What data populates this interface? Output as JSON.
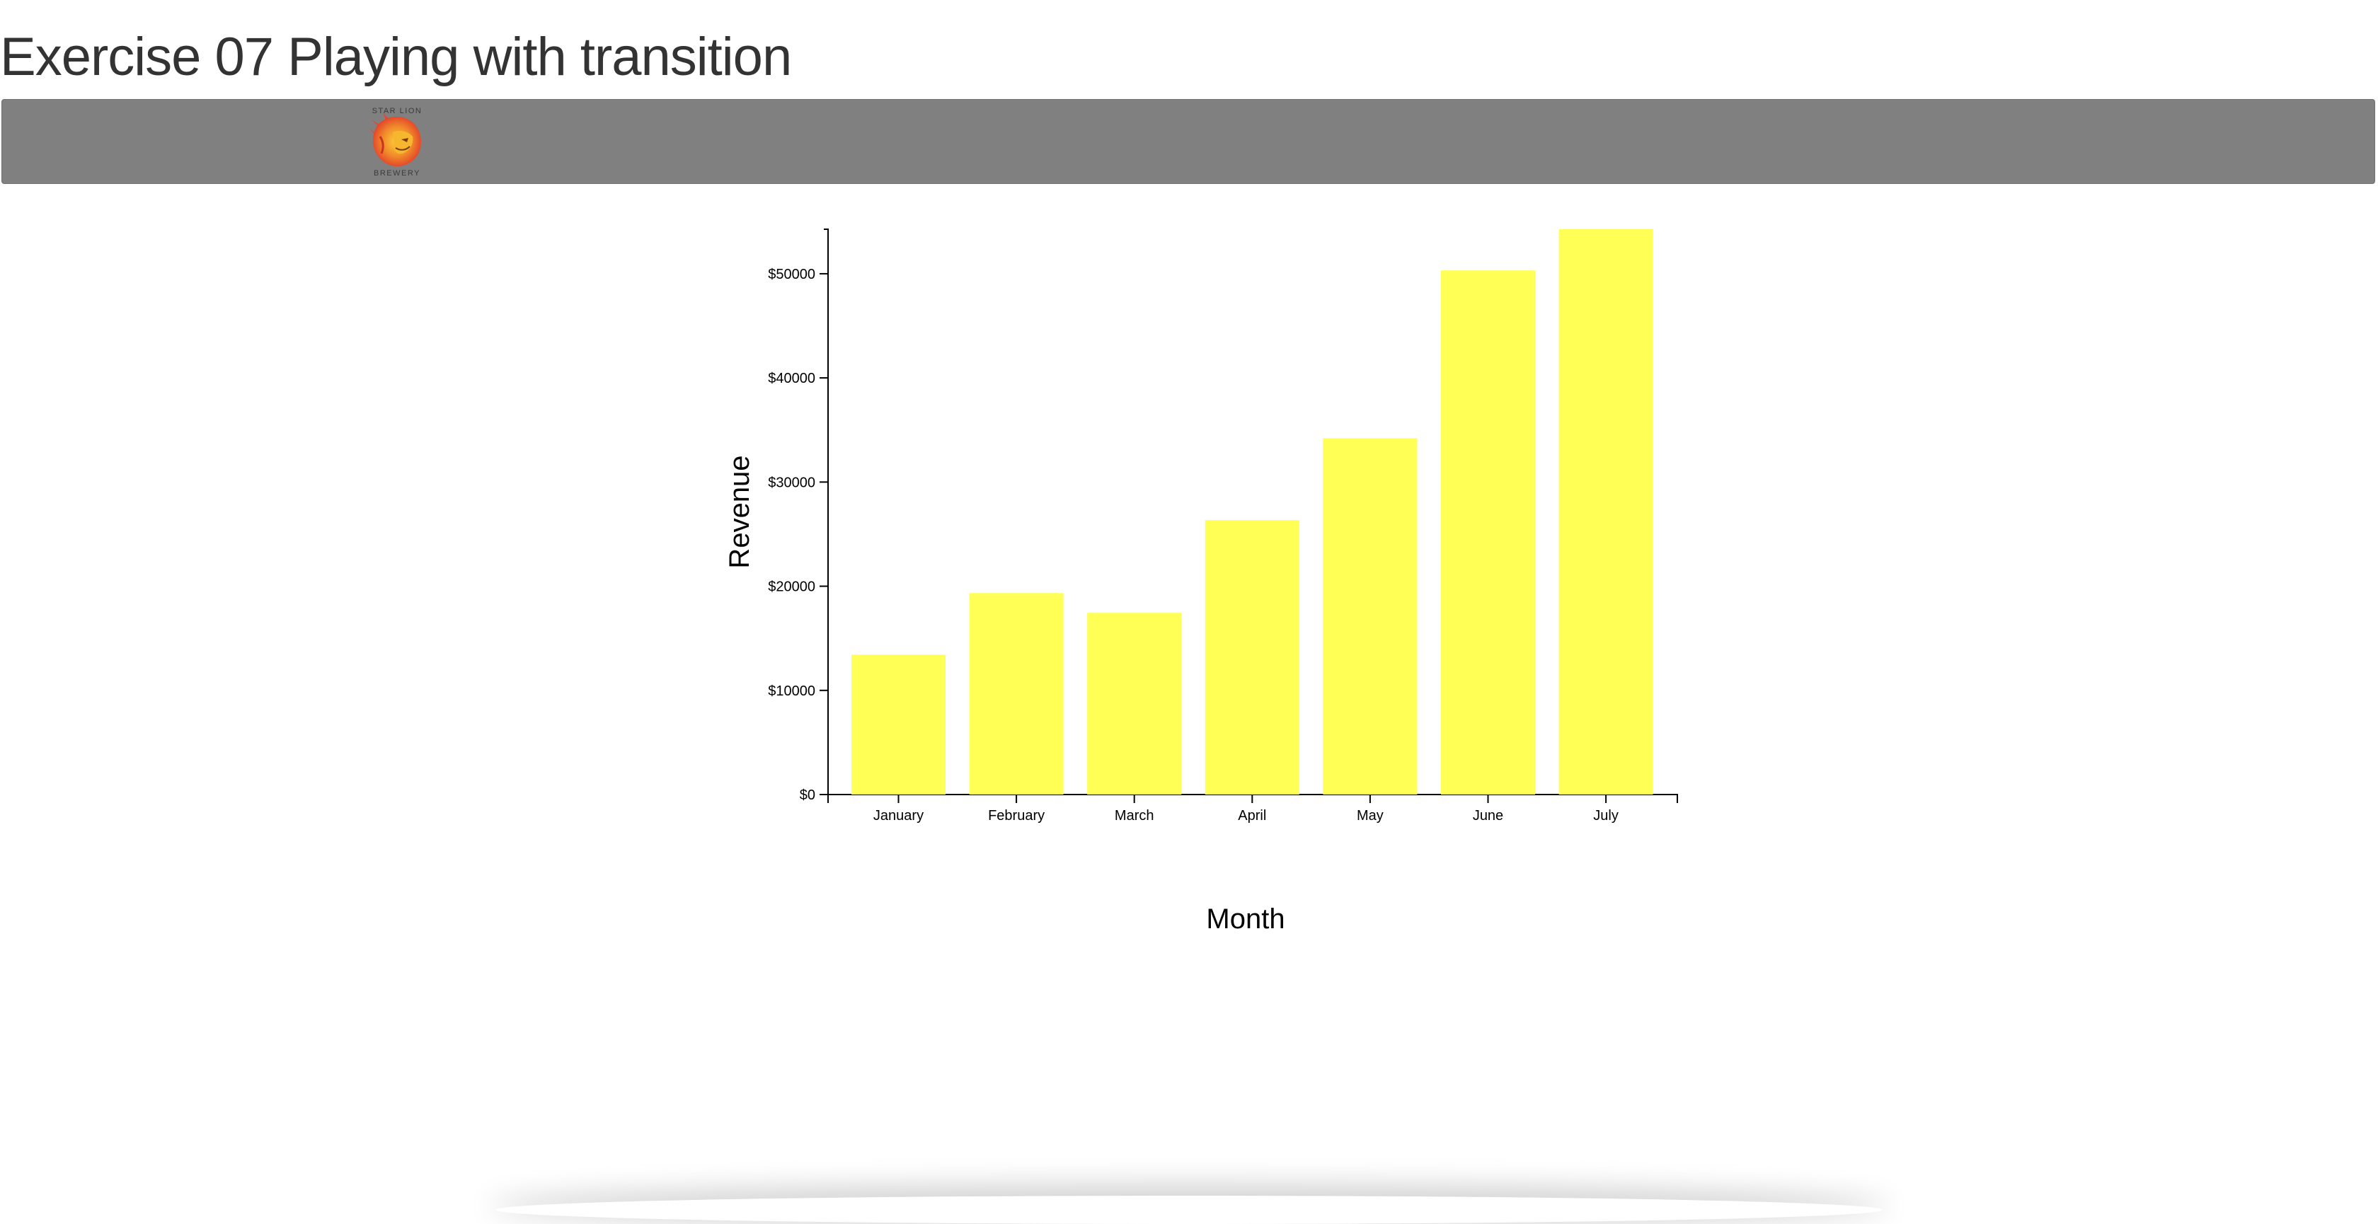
{
  "page": {
    "title": "Exercise 07 Playing with transition"
  },
  "navbar": {
    "logo_text_top": "STAR LION",
    "logo_text_bottom": "BREWERY",
    "logo_icon": "lion-head-icon"
  },
  "colors": {
    "bar": "#ffff55",
    "navbar": "#808080",
    "title": "#333333"
  },
  "chart_data": {
    "type": "bar",
    "categories": [
      "January",
      "February",
      "March",
      "April",
      "May",
      "June",
      "July"
    ],
    "values": [
      13432,
      19342,
      17443,
      26342,
      34213,
      50321,
      54273
    ],
    "xlabel": "Month",
    "ylabel": "Revenue",
    "ylim": [
      0,
      54273
    ],
    "yticks": [
      0,
      10000,
      20000,
      30000,
      40000,
      50000
    ],
    "ytick_labels": [
      "$0",
      "$10000",
      "$20000",
      "$30000",
      "$40000",
      "$50000"
    ],
    "grid": false
  }
}
